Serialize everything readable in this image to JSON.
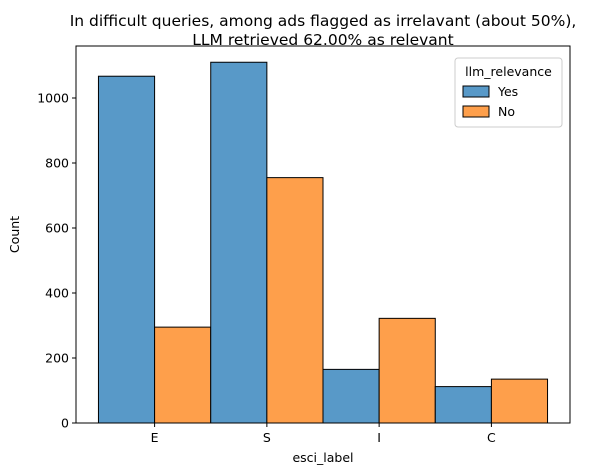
{
  "chart_data": {
    "type": "bar",
    "title": "In difficult queries, among ads flagged as irrelavant (about 50%),\nLLM retrieved 62.00% as relevant",
    "xlabel": "esci_label",
    "ylabel": "Count",
    "categories": [
      "E",
      "S",
      "I",
      "C"
    ],
    "series": [
      {
        "name": "Yes",
        "values": [
          1067,
          1110,
          165,
          112
        ],
        "color": "#5899c8"
      },
      {
        "name": "No",
        "values": [
          295,
          755,
          322,
          135
        ],
        "color": "#fe9f4b"
      }
    ],
    "ylim": [
      0,
      1160
    ],
    "yticks": [
      0,
      200,
      400,
      600,
      800,
      1000
    ],
    "legend": {
      "title": "llm_relevance",
      "position": "upper-right"
    },
    "grid": false
  }
}
